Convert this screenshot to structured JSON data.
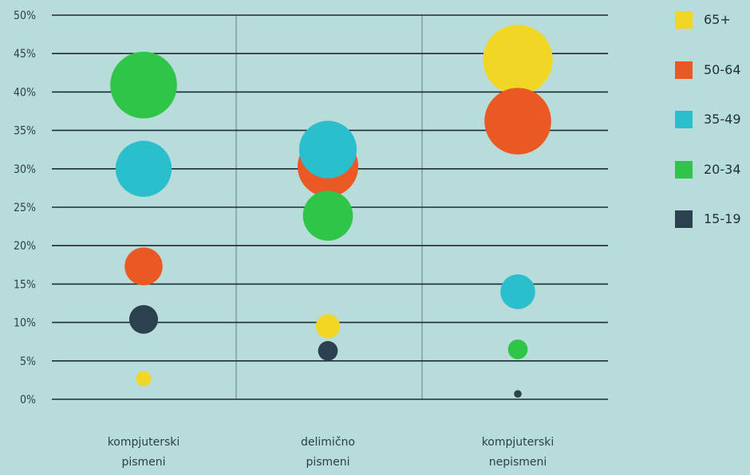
{
  "chart_data": {
    "type": "scatter",
    "title": "",
    "xlabel": "",
    "ylabel": "",
    "categories": [
      [
        "kompjuterski",
        "pismeni"
      ],
      [
        "delimično",
        "pismeni"
      ],
      [
        "kompjuterski",
        "nepismeni"
      ]
    ],
    "y_ticks": [
      "0%",
      "5%",
      "10%",
      "15%",
      "20%",
      "25%",
      "30%",
      "35%",
      "40%",
      "45%",
      "50%"
    ],
    "ylim": [
      0,
      50
    ],
    "grid": true,
    "legend_position": "right",
    "series": [
      {
        "name": "65+",
        "color": "#f1d724",
        "values": [
          2.7,
          9.5,
          44.2
        ],
        "size_rank": [
          1,
          1.6,
          4.6
        ]
      },
      {
        "name": "50-64",
        "color": "#ea5824",
        "values": [
          17.3,
          30.3,
          36.2
        ],
        "size_rank": [
          2.5,
          4.0,
          4.4
        ]
      },
      {
        "name": "35-49",
        "color": "#2bbfcd",
        "values": [
          30.0,
          32.5,
          14.0
        ],
        "size_rank": [
          3.7,
          3.8,
          2.3
        ]
      },
      {
        "name": "20-34",
        "color": "#2fc548",
        "values": [
          40.9,
          23.9,
          6.5
        ],
        "size_rank": [
          4.4,
          3.3,
          1.3
        ]
      },
      {
        "name": "15-19",
        "color": "#2b4150",
        "values": [
          10.4,
          6.3,
          0.7
        ],
        "size_rank": [
          1.9,
          1.3,
          0.5
        ]
      }
    ]
  }
}
